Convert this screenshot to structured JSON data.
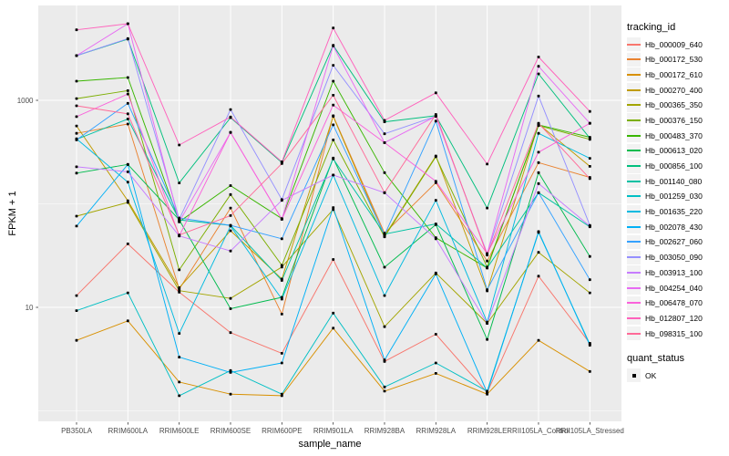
{
  "figure": {
    "background": "#FFFFFF",
    "panel_background": "#EBEBEB",
    "grid_color": "#FFFFFF",
    "axis_text_color": "#4D4D4D",
    "tick_color": "#333333",
    "point_color": "#000000",
    "legend_key_background": "#F2F2F2"
  },
  "axis": {
    "x": {
      "title": "sample_name"
    },
    "y": {
      "title": "FPKM + 1"
    }
  },
  "legend": {
    "tracking": {
      "title": "tracking_id"
    },
    "quant": {
      "title": "quant_status",
      "items": [
        {
          "label": "OK",
          "marker": "black-square"
        }
      ]
    }
  },
  "chart_data": {
    "type": "line",
    "x_type": "categorical",
    "title": "",
    "xlabel": "sample_name",
    "ylabel": "FPKM + 1",
    "y_scale": "log10",
    "y_breaks": [
      10,
      1000
    ],
    "y_break_labels": [
      "10",
      "1000"
    ],
    "y_minor_breaks": [
      1,
      100
    ],
    "ylim": [
      0.8,
      7900
    ],
    "grid": true,
    "legend_position": "right",
    "marker": "black-square",
    "categories": [
      "PB350LA",
      "RRIM600LA",
      "RRIM600LE",
      "RRIM600SE",
      "RRIM600PE",
      "RRIM901LA",
      "RRIM928BA",
      "RRIM928LA",
      "RRIM928LE",
      "RRII105LA_Control",
      "RRII105LA_Stressed"
    ],
    "series": [
      {
        "name": "Hb_000009_640",
        "color": "#F8766D",
        "values": [
          13,
          41,
          14,
          5.7,
          3.6,
          29,
          3.0,
          5.5,
          1.5,
          20,
          4.5
        ]
      },
      {
        "name": "Hb_000172_530",
        "color": "#EA8331",
        "values": [
          480,
          590,
          15,
          91,
          8.6,
          710,
          52,
          160,
          28,
          250,
          180
        ]
      },
      {
        "name": "Hb_000172_610",
        "color": "#D89000",
        "values": [
          4.8,
          7.4,
          1.9,
          1.45,
          1.4,
          6.3,
          1.55,
          2.3,
          1.45,
          4.8,
          2.4
        ]
      },
      {
        "name": "Hb_000270_400",
        "color": "#C09B00",
        "values": [
          565,
          107,
          15.5,
          55,
          18.8,
          700,
          49,
          290,
          14.4,
          590,
          230
        ]
      },
      {
        "name": "Hb_000365_350",
        "color": "#A3A500",
        "values": [
          76,
          103,
          14.5,
          12.2,
          24.5,
          88,
          6.5,
          21.5,
          7.0,
          34,
          13.8
        ]
      },
      {
        "name": "Hb_000376_150",
        "color": "#7CAE00",
        "values": [
          1040,
          1240,
          23,
          123,
          25.5,
          415,
          48,
          285,
          24.5,
          570,
          420
        ]
      },
      {
        "name": "Hb_000483_370",
        "color": "#39B600",
        "values": [
          1530,
          1660,
          67,
          150,
          72,
          1530,
          200,
          47,
          24,
          580,
          440
        ]
      },
      {
        "name": "Hb_000613_020",
        "color": "#00BB4E",
        "values": [
          198,
          240,
          70,
          9.7,
          12.5,
          277,
          24.4,
          63,
          4.9,
          200,
          31
        ]
      },
      {
        "name": "Hb_000856_100",
        "color": "#00BF7D",
        "values": [
          2700,
          3900,
          159,
          680,
          250,
          3400,
          620,
          710,
          91,
          1800,
          430
        ]
      },
      {
        "name": "Hb_001140_080",
        "color": "#00C1A3",
        "values": [
          420,
          660,
          70,
          62,
          18.2,
          272,
          51,
          64,
          24,
          128,
          60
        ]
      },
      {
        "name": "Hb_001259_030",
        "color": "#00BFC4",
        "values": [
          9.3,
          13.8,
          1.4,
          2.45,
          1.45,
          8.8,
          1.7,
          2.9,
          1.55,
          53,
          4.4
        ]
      },
      {
        "name": "Hb_001635_220",
        "color": "#00BAE0",
        "values": [
          425,
          162,
          5.6,
          61,
          12,
          190,
          13,
          108,
          7.2,
          480,
          275
        ]
      },
      {
        "name": "Hb_002078_430",
        "color": "#00B0F6",
        "values": [
          61,
          240,
          3.3,
          2.35,
          2.9,
          92,
          3.1,
          21,
          1.5,
          54,
          4.3
        ]
      },
      {
        "name": "Hb_002627_060",
        "color": "#35A2FF",
        "values": [
          415,
          935,
          73,
          62,
          46,
          580,
          50,
          630,
          14.8,
          128,
          18.5
        ]
      },
      {
        "name": "Hb_003050_090",
        "color": "#9590FF",
        "values": [
          2700,
          3950,
          71,
          815,
          110,
          2180,
          475,
          700,
          33,
          1100,
          62
        ]
      },
      {
        "name": "Hb_003913_100",
        "color": "#C77CFF",
        "values": [
          228,
          204,
          49,
          35,
          108,
          190,
          128,
          46,
          7.0,
          157,
          61
        ]
      },
      {
        "name": "Hb_004254_040",
        "color": "#E76BF3",
        "values": [
          2700,
          5500,
          67,
          490,
          71,
          3350,
          390,
          700,
          33,
          2130,
          600
        ]
      },
      {
        "name": "Hb_006478_070",
        "color": "#FA62DB",
        "values": [
          695,
          1150,
          49,
          490,
          71,
          900,
          390,
          165,
          33,
          315,
          600
        ]
      },
      {
        "name": "Hb_012807_120",
        "color": "#FF62BC",
        "values": [
          4800,
          5500,
          370,
          690,
          255,
          5000,
          640,
          1180,
          242,
          2620,
          780
        ]
      },
      {
        "name": "Hb_098315_100",
        "color": "#FF6A98",
        "values": [
          885,
          740,
          50,
          77,
          245,
          1120,
          128,
          730,
          32,
          600,
          175
        ]
      }
    ]
  }
}
